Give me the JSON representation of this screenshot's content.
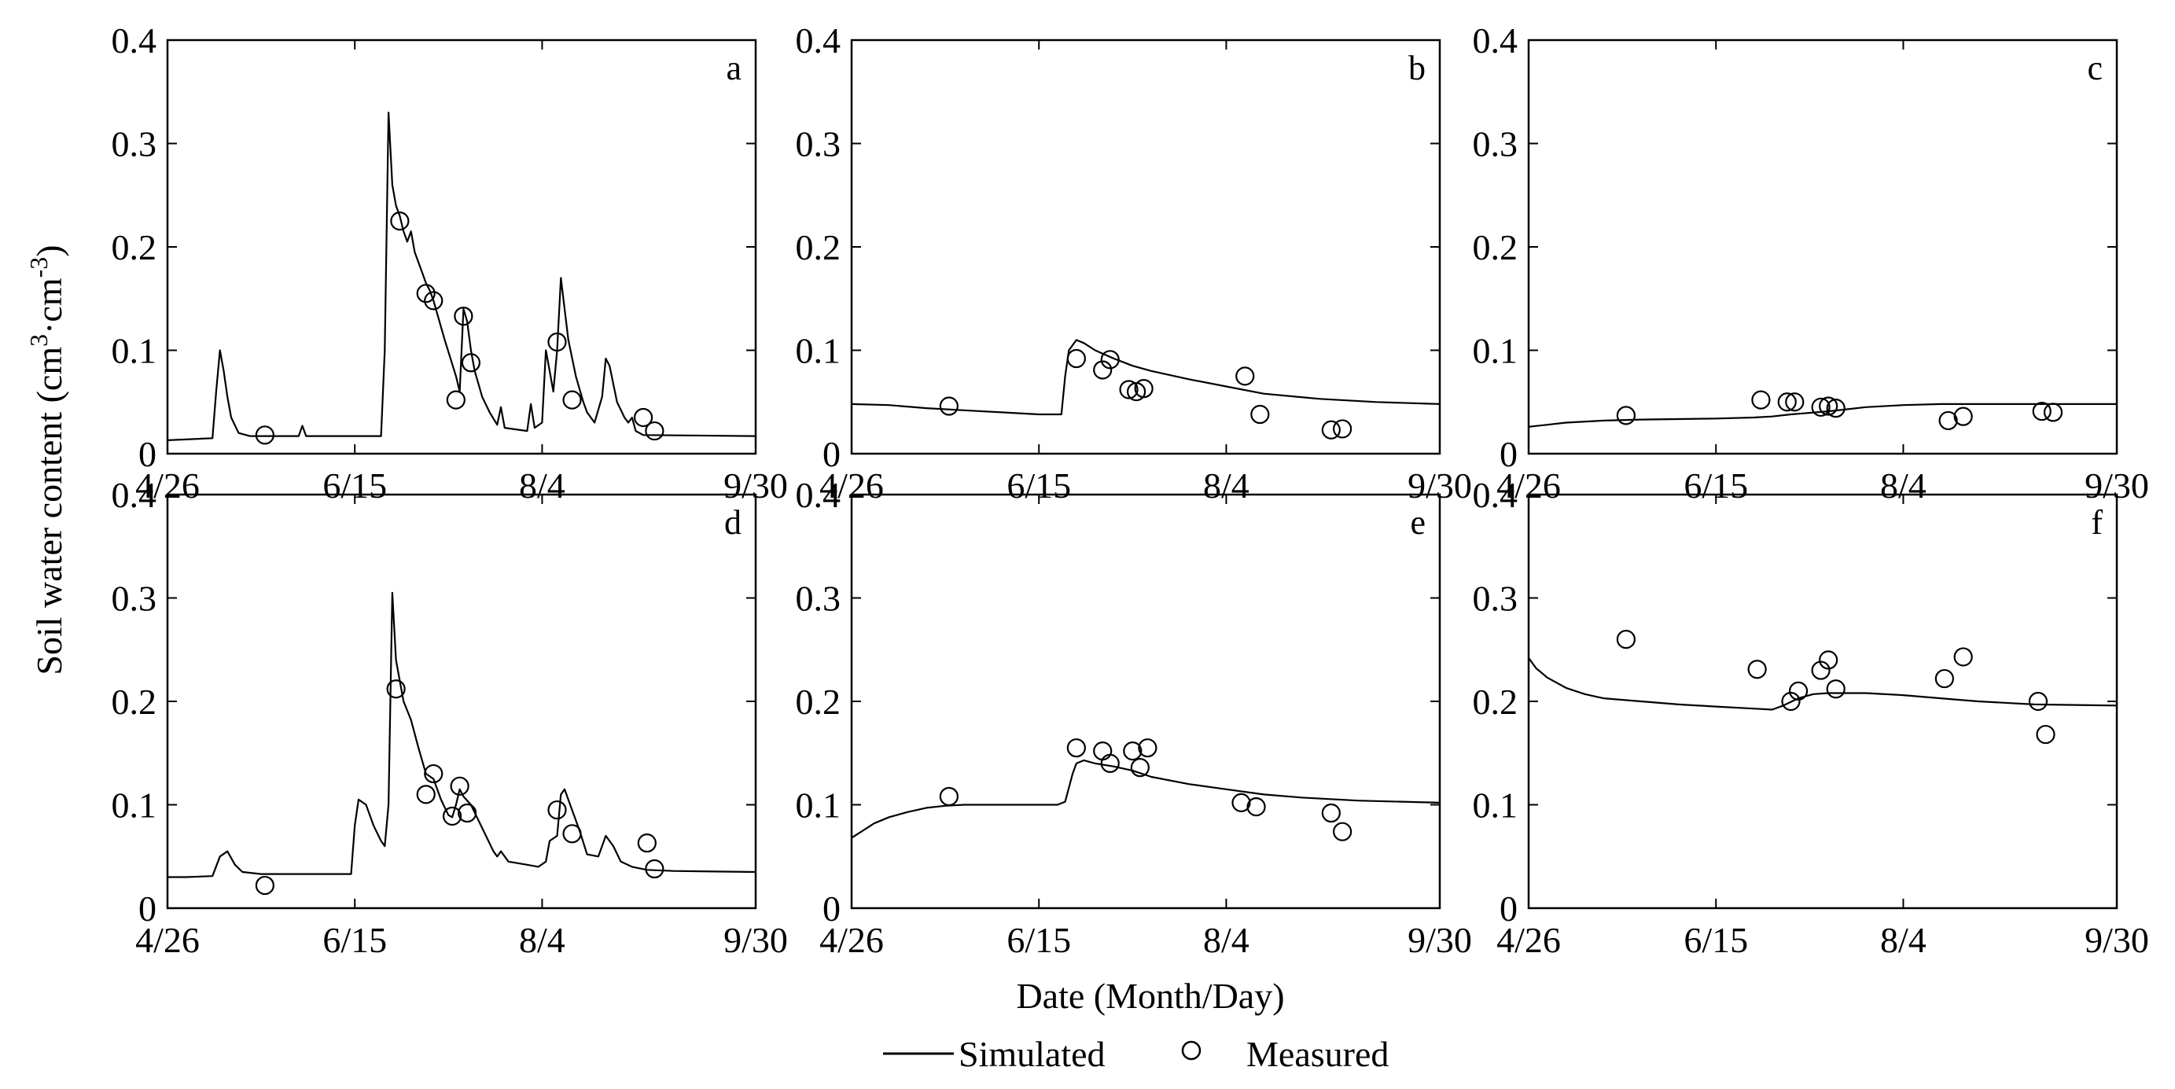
{
  "figure": {
    "ylabel_prefix": "Soil water content (cm",
    "ylabel_sup1": "3",
    "ylabel_dot": "·cm",
    "ylabel_sup2": "-3",
    "ylabel_suffix": ")",
    "xlabel": "Date (Month/Day)",
    "legend_simulated": "Simulated",
    "legend_measured": "Measured"
  },
  "chart_data": [
    {
      "type": "line",
      "label": "a",
      "xlim": [
        0,
        157
      ],
      "ylim": [
        0,
        0.4
      ],
      "xticks": [
        0,
        50,
        100,
        157
      ],
      "xticklabels": [
        "4/26",
        "6/15",
        "8/4",
        "9/30"
      ],
      "yticks": [
        0,
        0.1,
        0.2,
        0.3,
        0.4
      ],
      "yticklabels": [
        "0",
        "0.1",
        "0.2",
        "0.3",
        "0.4"
      ],
      "simulated": [
        [
          0,
          0.013
        ],
        [
          6,
          0.014
        ],
        [
          12,
          0.015
        ],
        [
          13,
          0.06
        ],
        [
          14,
          0.1
        ],
        [
          15,
          0.08
        ],
        [
          16,
          0.055
        ],
        [
          17,
          0.035
        ],
        [
          19,
          0.02
        ],
        [
          22,
          0.017
        ],
        [
          35,
          0.017
        ],
        [
          36,
          0.027
        ],
        [
          37,
          0.017
        ],
        [
          57,
          0.017
        ],
        [
          58,
          0.1
        ],
        [
          59,
          0.33
        ],
        [
          60,
          0.26
        ],
        [
          61,
          0.24
        ],
        [
          62,
          0.23
        ],
        [
          63,
          0.215
        ],
        [
          64,
          0.205
        ],
        [
          65,
          0.215
        ],
        [
          66,
          0.195
        ],
        [
          68,
          0.175
        ],
        [
          69,
          0.165
        ],
        [
          70,
          0.158
        ],
        [
          71,
          0.148
        ],
        [
          74,
          0.11
        ],
        [
          77,
          0.075
        ],
        [
          78,
          0.06
        ],
        [
          79,
          0.14
        ],
        [
          80,
          0.128
        ],
        [
          81,
          0.1
        ],
        [
          82,
          0.08
        ],
        [
          84,
          0.055
        ],
        [
          86,
          0.04
        ],
        [
          88,
          0.028
        ],
        [
          89,
          0.045
        ],
        [
          90,
          0.025
        ],
        [
          96,
          0.022
        ],
        [
          97,
          0.048
        ],
        [
          98,
          0.025
        ],
        [
          100,
          0.03
        ],
        [
          101,
          0.1
        ],
        [
          102,
          0.08
        ],
        [
          103,
          0.06
        ],
        [
          104,
          0.1
        ],
        [
          105,
          0.17
        ],
        [
          106,
          0.14
        ],
        [
          107,
          0.11
        ],
        [
          109,
          0.075
        ],
        [
          111,
          0.05
        ],
        [
          112,
          0.04
        ],
        [
          114,
          0.03
        ],
        [
          116,
          0.055
        ],
        [
          117,
          0.092
        ],
        [
          118,
          0.085
        ],
        [
          120,
          0.05
        ],
        [
          122,
          0.035
        ],
        [
          123,
          0.03
        ],
        [
          124,
          0.035
        ],
        [
          125,
          0.022
        ],
        [
          127,
          0.018
        ],
        [
          157,
          0.017
        ]
      ],
      "measured": [
        [
          26,
          0.018
        ],
        [
          62,
          0.225
        ],
        [
          69,
          0.155
        ],
        [
          71,
          0.148
        ],
        [
          77,
          0.052
        ],
        [
          79,
          0.133
        ],
        [
          81,
          0.088
        ],
        [
          104,
          0.108
        ],
        [
          108,
          0.052
        ],
        [
          127,
          0.035
        ],
        [
          130,
          0.022
        ]
      ]
    },
    {
      "type": "line",
      "label": "b",
      "xlim": [
        0,
        157
      ],
      "ylim": [
        0,
        0.4
      ],
      "xticks": [
        0,
        50,
        100,
        157
      ],
      "xticklabels": [
        "4/26",
        "6/15",
        "8/4",
        "9/30"
      ],
      "yticks": [
        0,
        0.1,
        0.2,
        0.3,
        0.4
      ],
      "yticklabels": [
        "0",
        "0.1",
        "0.2",
        "0.3",
        "0.4"
      ],
      "simulated": [
        [
          0,
          0.048
        ],
        [
          10,
          0.047
        ],
        [
          20,
          0.044
        ],
        [
          30,
          0.042
        ],
        [
          40,
          0.04
        ],
        [
          50,
          0.038
        ],
        [
          56,
          0.038
        ],
        [
          57,
          0.075
        ],
        [
          58,
          0.1
        ],
        [
          60,
          0.11
        ],
        [
          62,
          0.107
        ],
        [
          65,
          0.1
        ],
        [
          70,
          0.092
        ],
        [
          75,
          0.085
        ],
        [
          80,
          0.08
        ],
        [
          90,
          0.072
        ],
        [
          100,
          0.065
        ],
        [
          110,
          0.058
        ],
        [
          125,
          0.053
        ],
        [
          140,
          0.05
        ],
        [
          157,
          0.048
        ]
      ],
      "measured": [
        [
          26,
          0.046
        ],
        [
          60,
          0.092
        ],
        [
          67,
          0.081
        ],
        [
          69,
          0.091
        ],
        [
          74,
          0.062
        ],
        [
          76,
          0.06
        ],
        [
          78,
          0.063
        ],
        [
          105,
          0.075
        ],
        [
          109,
          0.038
        ],
        [
          128,
          0.023
        ],
        [
          131,
          0.024
        ]
      ]
    },
    {
      "type": "line",
      "label": "c",
      "xlim": [
        0,
        157
      ],
      "ylim": [
        0,
        0.4
      ],
      "xticks": [
        0,
        50,
        100,
        157
      ],
      "xticklabels": [
        "4/26",
        "6/15",
        "8/4",
        "9/30"
      ],
      "yticks": [
        0,
        0.1,
        0.2,
        0.3,
        0.4
      ],
      "yticklabels": [
        "0",
        "0.1",
        "0.2",
        "0.3",
        "0.4"
      ],
      "simulated": [
        [
          0,
          0.026
        ],
        [
          5,
          0.028
        ],
        [
          10,
          0.03
        ],
        [
          20,
          0.032
        ],
        [
          30,
          0.033
        ],
        [
          50,
          0.034
        ],
        [
          60,
          0.035
        ],
        [
          65,
          0.036
        ],
        [
          70,
          0.038
        ],
        [
          80,
          0.041
        ],
        [
          85,
          0.043
        ],
        [
          90,
          0.045
        ],
        [
          100,
          0.047
        ],
        [
          110,
          0.048
        ],
        [
          125,
          0.048
        ],
        [
          157,
          0.048
        ]
      ],
      "measured": [
        [
          26,
          0.037
        ],
        [
          62,
          0.052
        ],
        [
          69,
          0.05
        ],
        [
          71,
          0.05
        ],
        [
          78,
          0.045
        ],
        [
          80,
          0.046
        ],
        [
          82,
          0.044
        ],
        [
          112,
          0.032
        ],
        [
          116,
          0.036
        ],
        [
          137,
          0.041
        ],
        [
          140,
          0.04
        ]
      ]
    },
    {
      "type": "line",
      "label": "d",
      "xlim": [
        0,
        157
      ],
      "ylim": [
        0,
        0.4
      ],
      "xticks": [
        0,
        50,
        100,
        157
      ],
      "xticklabels": [
        "4/26",
        "6/15",
        "8/4",
        "9/30"
      ],
      "yticks": [
        0,
        0.1,
        0.2,
        0.3,
        0.4
      ],
      "yticklabels": [
        "0",
        "0.1",
        "0.2",
        "0.3",
        "0.4"
      ],
      "simulated": [
        [
          0,
          0.03
        ],
        [
          5,
          0.03
        ],
        [
          12,
          0.031
        ],
        [
          14,
          0.05
        ],
        [
          16,
          0.055
        ],
        [
          18,
          0.042
        ],
        [
          20,
          0.035
        ],
        [
          25,
          0.033
        ],
        [
          49,
          0.033
        ],
        [
          50,
          0.08
        ],
        [
          51,
          0.105
        ],
        [
          53,
          0.1
        ],
        [
          55,
          0.08
        ],
        [
          57,
          0.065
        ],
        [
          58,
          0.06
        ],
        [
          59,
          0.1
        ],
        [
          60,
          0.305
        ],
        [
          61,
          0.24
        ],
        [
          63,
          0.2
        ],
        [
          65,
          0.182
        ],
        [
          67,
          0.155
        ],
        [
          69,
          0.13
        ],
        [
          71,
          0.125
        ],
        [
          73,
          0.105
        ],
        [
          75,
          0.09
        ],
        [
          76,
          0.088
        ],
        [
          77,
          0.1
        ],
        [
          78,
          0.115
        ],
        [
          79,
          0.108
        ],
        [
          81,
          0.1
        ],
        [
          83,
          0.085
        ],
        [
          85,
          0.07
        ],
        [
          87,
          0.055
        ],
        [
          88,
          0.05
        ],
        [
          89,
          0.055
        ],
        [
          91,
          0.045
        ],
        [
          96,
          0.042
        ],
        [
          99,
          0.04
        ],
        [
          101,
          0.045
        ],
        [
          102,
          0.065
        ],
        [
          104,
          0.07
        ],
        [
          105,
          0.11
        ],
        [
          106,
          0.115
        ],
        [
          108,
          0.095
        ],
        [
          110,
          0.075
        ],
        [
          112,
          0.052
        ],
        [
          115,
          0.05
        ],
        [
          117,
          0.07
        ],
        [
          119,
          0.06
        ],
        [
          121,
          0.045
        ],
        [
          124,
          0.04
        ],
        [
          128,
          0.037
        ],
        [
          135,
          0.036
        ],
        [
          157,
          0.035
        ]
      ],
      "measured": [
        [
          26,
          0.022
        ],
        [
          61,
          0.212
        ],
        [
          69,
          0.11
        ],
        [
          71,
          0.13
        ],
        [
          76,
          0.089
        ],
        [
          78,
          0.118
        ],
        [
          80,
          0.092
        ],
        [
          104,
          0.095
        ],
        [
          108,
          0.072
        ],
        [
          128,
          0.063
        ],
        [
          130,
          0.038
        ]
      ]
    },
    {
      "type": "line",
      "label": "e",
      "xlim": [
        0,
        157
      ],
      "ylim": [
        0,
        0.4
      ],
      "xticks": [
        0,
        50,
        100,
        157
      ],
      "xticklabels": [
        "4/26",
        "6/15",
        "8/4",
        "9/30"
      ],
      "yticks": [
        0,
        0.1,
        0.2,
        0.3,
        0.4
      ],
      "yticklabels": [
        "0",
        "0.1",
        "0.2",
        "0.3",
        "0.4"
      ],
      "simulated": [
        [
          0,
          0.068
        ],
        [
          3,
          0.075
        ],
        [
          6,
          0.082
        ],
        [
          10,
          0.088
        ],
        [
          15,
          0.093
        ],
        [
          20,
          0.097
        ],
        [
          25,
          0.099
        ],
        [
          30,
          0.1
        ],
        [
          55,
          0.1
        ],
        [
          57,
          0.103
        ],
        [
          59,
          0.13
        ],
        [
          60,
          0.14
        ],
        [
          62,
          0.143
        ],
        [
          65,
          0.14
        ],
        [
          70,
          0.137
        ],
        [
          75,
          0.133
        ],
        [
          80,
          0.127
        ],
        [
          90,
          0.12
        ],
        [
          100,
          0.115
        ],
        [
          110,
          0.11
        ],
        [
          120,
          0.107
        ],
        [
          135,
          0.104
        ],
        [
          157,
          0.102
        ]
      ],
      "measured": [
        [
          26,
          0.108
        ],
        [
          60,
          0.155
        ],
        [
          67,
          0.152
        ],
        [
          69,
          0.14
        ],
        [
          75,
          0.152
        ],
        [
          77,
          0.136
        ],
        [
          79,
          0.155
        ],
        [
          104,
          0.102
        ],
        [
          108,
          0.098
        ],
        [
          128,
          0.092
        ],
        [
          131,
          0.074
        ]
      ]
    },
    {
      "type": "line",
      "label": "f",
      "xlim": [
        0,
        157
      ],
      "ylim": [
        0,
        0.4
      ],
      "xticks": [
        0,
        50,
        100,
        157
      ],
      "xticklabels": [
        "4/26",
        "6/15",
        "8/4",
        "9/30"
      ],
      "yticks": [
        0,
        0.1,
        0.2,
        0.3,
        0.4
      ],
      "yticklabels": [
        "0",
        "0.1",
        "0.2",
        "0.3",
        "0.4"
      ],
      "simulated": [
        [
          0,
          0.242
        ],
        [
          2,
          0.232
        ],
        [
          5,
          0.223
        ],
        [
          10,
          0.213
        ],
        [
          15,
          0.207
        ],
        [
          20,
          0.203
        ],
        [
          30,
          0.2
        ],
        [
          40,
          0.197
        ],
        [
          50,
          0.195
        ],
        [
          60,
          0.193
        ],
        [
          65,
          0.192
        ],
        [
          68,
          0.196
        ],
        [
          72,
          0.203
        ],
        [
          76,
          0.207
        ],
        [
          80,
          0.208
        ],
        [
          90,
          0.208
        ],
        [
          100,
          0.206
        ],
        [
          110,
          0.203
        ],
        [
          120,
          0.2
        ],
        [
          135,
          0.197
        ],
        [
          157,
          0.196
        ]
      ],
      "measured": [
        [
          26,
          0.26
        ],
        [
          61,
          0.231
        ],
        [
          70,
          0.2
        ],
        [
          72,
          0.21
        ],
        [
          78,
          0.23
        ],
        [
          80,
          0.24
        ],
        [
          82,
          0.212
        ],
        [
          111,
          0.222
        ],
        [
          116,
          0.243
        ],
        [
          136,
          0.2
        ],
        [
          138,
          0.168
        ]
      ]
    }
  ]
}
